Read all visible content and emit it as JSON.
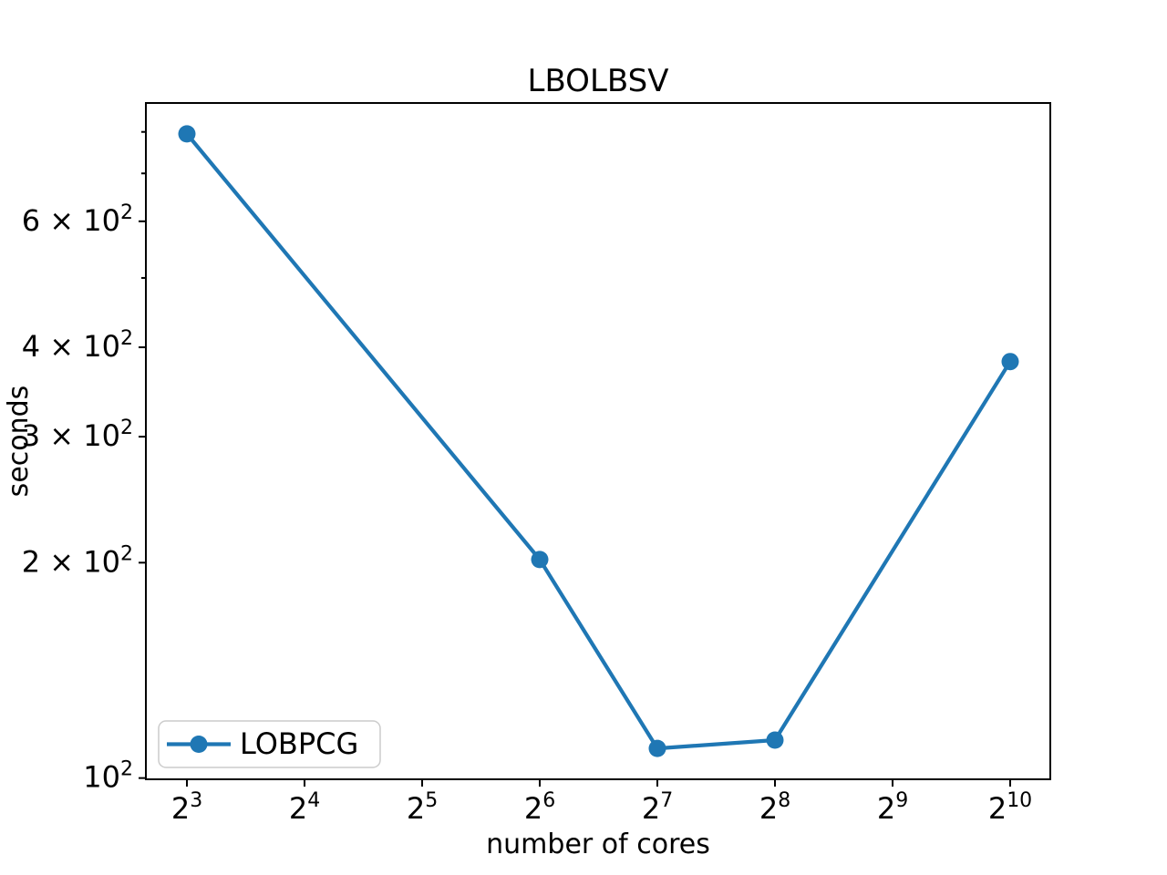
{
  "chart_data": {
    "type": "line",
    "title": "LBOLBSV",
    "xlabel": "number of cores",
    "ylabel": "seconds",
    "x_scale": "log2",
    "y_scale": "log10",
    "grid": false,
    "xlim_exp": [
      2.651,
      10.341
    ],
    "ylim": [
      99.6,
      878
    ],
    "series": [
      {
        "name": "LOBPCG",
        "color": "#1f77b4",
        "marker": "circle",
        "x": [
          8,
          64,
          128,
          256,
          1024
        ],
        "y": [
          795,
          202,
          110,
          113,
          382
        ]
      }
    ],
    "x_ticks": [
      {
        "value": 8,
        "label": "2^3"
      },
      {
        "value": 16,
        "label": "2^4"
      },
      {
        "value": 32,
        "label": "2^5"
      },
      {
        "value": 64,
        "label": "2^6"
      },
      {
        "value": 128,
        "label": "2^7"
      },
      {
        "value": 256,
        "label": "2^8"
      },
      {
        "value": 512,
        "label": "2^9"
      },
      {
        "value": 1024,
        "label": "2^10"
      }
    ],
    "y_ticks_major": [
      {
        "value": 100,
        "label": "10^2"
      },
      {
        "value": 200,
        "label": "2 × 10^2"
      },
      {
        "value": 300,
        "label": "3 × 10^2"
      },
      {
        "value": 400,
        "label": "4 × 10^2"
      },
      {
        "value": 600,
        "label": "6 × 10^2"
      }
    ],
    "y_ticks_minor": [
      500,
      700,
      800
    ],
    "legend": {
      "position": "lower left",
      "entries": [
        "LOBPCG"
      ]
    }
  }
}
